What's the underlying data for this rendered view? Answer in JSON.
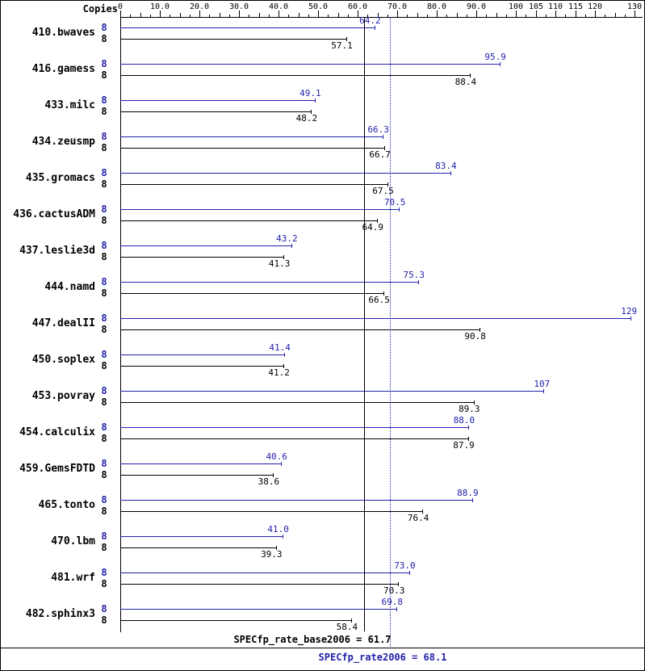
{
  "chart_data": {
    "type": "bar",
    "orientation": "horizontal",
    "copies_header": "Copies",
    "colors": {
      "peak": "#2222aa",
      "base": "#000000",
      "background": "#ffffff"
    },
    "axis": {
      "min": 0,
      "max": 130,
      "minor_step": 2.5,
      "ticks": [
        {
          "v": 0,
          "label": "0"
        },
        {
          "v": 10,
          "label": "10.0"
        },
        {
          "v": 20,
          "label": "20.0"
        },
        {
          "v": 30,
          "label": "30.0"
        },
        {
          "v": 40,
          "label": "40.0"
        },
        {
          "v": 50,
          "label": "50.0"
        },
        {
          "v": 60,
          "label": "60.0"
        },
        {
          "v": 70,
          "label": "70.0"
        },
        {
          "v": 80,
          "label": "80.0"
        },
        {
          "v": 90,
          "label": "90.0"
        },
        {
          "v": 100,
          "label": "100"
        },
        {
          "v": 105,
          "label": "105"
        },
        {
          "v": 110,
          "label": "110"
        },
        {
          "v": 115,
          "label": "115"
        },
        {
          "v": 120,
          "label": "120"
        },
        {
          "v": 130,
          "label": "130"
        }
      ]
    },
    "series": [
      {
        "key": "peak",
        "name": "SPECfp_rate2006",
        "color": "#2222aa"
      },
      {
        "key": "base",
        "name": "SPECfp_rate_base2006",
        "color": "#000000"
      }
    ],
    "benchmarks": [
      {
        "name": "410.bwaves",
        "peak": {
          "copies": "8",
          "value": 64.2,
          "label": "64.2"
        },
        "base": {
          "copies": "8",
          "value": 57.1,
          "label": "57.1"
        }
      },
      {
        "name": "416.gamess",
        "peak": {
          "copies": "8",
          "value": 95.9,
          "label": "95.9"
        },
        "base": {
          "copies": "8",
          "value": 88.4,
          "label": "88.4"
        }
      },
      {
        "name": "433.milc",
        "peak": {
          "copies": "8",
          "value": 49.1,
          "label": "49.1"
        },
        "base": {
          "copies": "8",
          "value": 48.2,
          "label": "48.2"
        }
      },
      {
        "name": "434.zeusmp",
        "peak": {
          "copies": "8",
          "value": 66.3,
          "label": "66.3"
        },
        "base": {
          "copies": "8",
          "value": 66.7,
          "label": "66.7"
        }
      },
      {
        "name": "435.gromacs",
        "peak": {
          "copies": "8",
          "value": 83.4,
          "label": "83.4"
        },
        "base": {
          "copies": "8",
          "value": 67.5,
          "label": "67.5"
        }
      },
      {
        "name": "436.cactusADM",
        "peak": {
          "copies": "8",
          "value": 70.5,
          "label": "70.5"
        },
        "base": {
          "copies": "8",
          "value": 64.9,
          "label": "64.9"
        }
      },
      {
        "name": "437.leslie3d",
        "peak": {
          "copies": "8",
          "value": 43.2,
          "label": "43.2"
        },
        "base": {
          "copies": "8",
          "value": 41.3,
          "label": "41.3"
        }
      },
      {
        "name": "444.namd",
        "peak": {
          "copies": "8",
          "value": 75.3,
          "label": "75.3"
        },
        "base": {
          "copies": "8",
          "value": 66.5,
          "label": "66.5"
        }
      },
      {
        "name": "447.dealII",
        "peak": {
          "copies": "8",
          "value": 129,
          "label": "129"
        },
        "base": {
          "copies": "8",
          "value": 90.8,
          "label": "90.8"
        }
      },
      {
        "name": "450.soplex",
        "peak": {
          "copies": "8",
          "value": 41.4,
          "label": "41.4"
        },
        "base": {
          "copies": "8",
          "value": 41.2,
          "label": "41.2"
        }
      },
      {
        "name": "453.povray",
        "peak": {
          "copies": "8",
          "value": 107,
          "label": "107"
        },
        "base": {
          "copies": "8",
          "value": 89.3,
          "label": "89.3"
        }
      },
      {
        "name": "454.calculix",
        "peak": {
          "copies": "8",
          "value": 88.0,
          "label": "88.0"
        },
        "base": {
          "copies": "8",
          "value": 87.9,
          "label": "87.9"
        }
      },
      {
        "name": "459.GemsFDTD",
        "peak": {
          "copies": "8",
          "value": 40.6,
          "label": "40.6"
        },
        "base": {
          "copies": "8",
          "value": 38.6,
          "label": "38.6"
        }
      },
      {
        "name": "465.tonto",
        "peak": {
          "copies": "8",
          "value": 88.9,
          "label": "88.9"
        },
        "base": {
          "copies": "8",
          "value": 76.4,
          "label": "76.4"
        }
      },
      {
        "name": "470.lbm",
        "peak": {
          "copies": "8",
          "value": 41.0,
          "label": "41.0"
        },
        "base": {
          "copies": "8",
          "value": 39.3,
          "label": "39.3"
        }
      },
      {
        "name": "481.wrf",
        "peak": {
          "copies": "8",
          "value": 73.0,
          "label": "73.0"
        },
        "base": {
          "copies": "8",
          "value": 70.3,
          "label": "70.3"
        }
      },
      {
        "name": "482.sphinx3",
        "peak": {
          "copies": "8",
          "value": 69.8,
          "label": "69.8"
        },
        "base": {
          "copies": "8",
          "value": 58.4,
          "label": "58.4"
        }
      }
    ],
    "medians": {
      "base": {
        "value": 61.7,
        "label": "SPECfp_rate_base2006 = 61.7",
        "style": "solid",
        "color": "#000000"
      },
      "peak": {
        "value": 68.1,
        "label": "SPECfp_rate2006 = 68.1",
        "style": "dotted",
        "color": "#2222aa"
      }
    }
  }
}
